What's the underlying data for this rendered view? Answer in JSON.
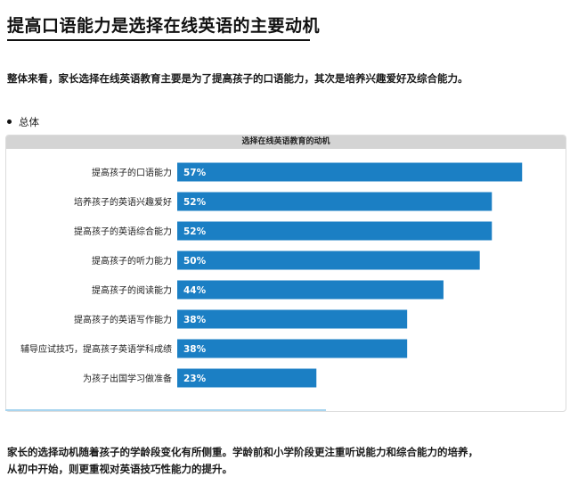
{
  "page": {
    "title": "提高口语能力是选择在线英语的主要动机",
    "summary": "整体来看，家长选择在线英语教育主要是为了提高孩子的口语能力，其次是培养兴趣爱好及综合能力。",
    "section_label": "总体",
    "conclusion_line1": "家长的选择动机随着孩子的学龄段变化有所侧重。学龄前和小学阶段更注重听说能力和综合能力的培养，",
    "conclusion_line2": "从初中开始，则更重视对英语技巧性能力的提升。"
  },
  "chart_data": {
    "type": "bar",
    "orientation": "horizontal",
    "title": "选择在线英语教育的动机",
    "categories": [
      "提高孩子的口语能力",
      "培养孩子的英语兴趣爱好",
      "提高孩子的英语综合能力",
      "提高孩子的听力能力",
      "提高孩子的阅读能力",
      "提高孩子的英语写作能力",
      "辅导应试技巧，提高孩子英语学科成绩",
      "为孩子出国学习做准备"
    ],
    "values": [
      57,
      52,
      52,
      50,
      44,
      38,
      38,
      23
    ],
    "value_labels": [
      "57%",
      "52%",
      "52%",
      "50%",
      "44%",
      "38%",
      "38%",
      "23%"
    ],
    "xlim": [
      0,
      63
    ],
    "unit": "%",
    "grid": false,
    "legend": "none",
    "bar_color": "#1b7fc4"
  }
}
